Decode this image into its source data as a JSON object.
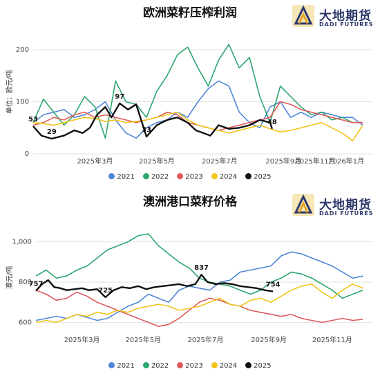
{
  "logo": {
    "cn": "大地期货",
    "en": "DADI FUTURES"
  },
  "legend": [
    {
      "name": "2021",
      "color": "#4f86d8"
    },
    {
      "name": "2022",
      "color": "#2ca66e"
    },
    {
      "name": "2023",
      "color": "#e05a5a"
    },
    {
      "name": "2024",
      "color": "#f0c419"
    },
    {
      "name": "2025",
      "color": "#111111"
    }
  ],
  "chart_data": [
    {
      "type": "line",
      "title": "欧洲菜籽压榨利润",
      "ylabel": "单位：欧元/吨",
      "xlabel": "",
      "ylim": [
        0,
        200
      ],
      "yticks": [
        "0",
        "100",
        "200"
      ],
      "xlim": [
        0,
        330
      ],
      "xticks": [
        {
          "x": 60,
          "label": "2025年3月"
        },
        {
          "x": 120,
          "label": "2025年5月"
        },
        {
          "x": 181,
          "label": "2025年7月"
        },
        {
          "x": 243,
          "label": "2025年9月"
        },
        {
          "x": 304,
          "label": "2026年1月"
        }
      ],
      "xtick_extra": [
        {
          "x": 274,
          "label": "2025年11月"
        }
      ],
      "series": [
        {
          "name": "2021",
          "x": [
            0,
            10,
            20,
            30,
            40,
            50,
            60,
            70,
            80,
            90,
            100,
            110,
            120,
            130,
            140,
            150,
            160,
            170,
            180,
            190,
            200,
            210,
            220,
            230,
            240,
            250,
            260,
            270,
            280,
            290,
            300,
            310,
            320
          ],
          "values": [
            60,
            75,
            80,
            85,
            70,
            75,
            85,
            100,
            65,
            40,
            30,
            50,
            60,
            65,
            80,
            70,
            100,
            125,
            140,
            130,
            80,
            60,
            50,
            90,
            100,
            70,
            80,
            70,
            80,
            75,
            70,
            70,
            55
          ]
        },
        {
          "name": "2022",
          "x": [
            0,
            10,
            20,
            30,
            40,
            50,
            60,
            70,
            80,
            90,
            100,
            110,
            120,
            130,
            140,
            150,
            160,
            170,
            180,
            190,
            200,
            210,
            220,
            230,
            240,
            250,
            260,
            270,
            280,
            290,
            300,
            310,
            320
          ],
          "values": [
            60,
            105,
            80,
            55,
            75,
            110,
            90,
            30,
            140,
            100,
            95,
            70,
            120,
            150,
            190,
            205,
            165,
            130,
            180,
            210,
            165,
            185,
            110,
            60,
            130,
            110,
            90,
            75,
            80,
            65,
            70,
            60,
            60
          ]
        },
        {
          "name": "2023",
          "x": [
            0,
            10,
            20,
            30,
            40,
            50,
            60,
            70,
            80,
            90,
            100,
            110,
            120,
            130,
            140,
            150,
            160,
            170,
            180,
            190,
            200,
            210,
            220,
            230,
            240,
            250,
            260,
            270,
            280,
            290,
            300,
            310,
            320
          ],
          "values": [
            55,
            60,
            70,
            65,
            75,
            80,
            70,
            75,
            70,
            65,
            60,
            65,
            70,
            80,
            75,
            60,
            55,
            50,
            45,
            50,
            55,
            60,
            65,
            70,
            100,
            95,
            85,
            80,
            75,
            70,
            65,
            60,
            60
          ]
        },
        {
          "name": "2024",
          "x": [
            0,
            10,
            20,
            30,
            40,
            50,
            60,
            70,
            80,
            90,
            100,
            110,
            120,
            130,
            140,
            150,
            160,
            170,
            180,
            190,
            200,
            210,
            220,
            230,
            240,
            250,
            260,
            270,
            280,
            290,
            300,
            310,
            320
          ],
          "values": [
            60,
            58,
            55,
            60,
            65,
            70,
            68,
            62,
            65,
            60,
            62,
            65,
            70,
            75,
            80,
            65,
            55,
            50,
            45,
            40,
            45,
            50,
            55,
            48,
            42,
            45,
            50,
            55,
            60,
            50,
            40,
            25,
            55
          ]
        },
        {
          "name": "2025",
          "x": [
            0,
            8,
            18,
            30,
            40,
            48,
            55,
            62,
            70,
            76,
            84,
            92,
            100,
            110,
            120,
            130,
            140,
            150,
            158,
            165,
            172,
            180,
            190,
            200,
            210,
            220,
            230,
            232
          ],
          "values": [
            53,
            35,
            29,
            35,
            45,
            40,
            50,
            75,
            90,
            70,
            97,
            85,
            95,
            33,
            55,
            65,
            70,
            60,
            45,
            40,
            35,
            55,
            48,
            50,
            55,
            65,
            60,
            48
          ]
        }
      ],
      "annotations": [
        {
          "series": "2025",
          "x": 0,
          "y": 53,
          "label": "53"
        },
        {
          "series": "2025",
          "x": 18,
          "y": 29,
          "label": "29"
        },
        {
          "series": "2025",
          "x": 84,
          "y": 97,
          "label": "97"
        },
        {
          "series": "2025",
          "x": 110,
          "y": 33,
          "label": "33"
        },
        {
          "series": "2025",
          "x": 232,
          "y": 48,
          "label": "48"
        }
      ]
    },
    {
      "type": "line",
      "title": "澳洲港口菜籽价格",
      "ylabel": "澳元/吨",
      "xlabel": "",
      "ylim": [
        550,
        1050
      ],
      "yticks": [
        "600",
        "800",
        "1,000"
      ],
      "xlim": [
        0,
        330
      ],
      "xticks": [
        {
          "x": 45,
          "label": "2025年3月"
        },
        {
          "x": 105,
          "label": "2025年5月"
        },
        {
          "x": 166,
          "label": "2025年7月"
        },
        {
          "x": 228,
          "label": "2025年9月"
        },
        {
          "x": 290,
          "label": "2025年11月"
        }
      ],
      "series": [
        {
          "name": "2021",
          "x": [
            0,
            10,
            20,
            30,
            40,
            50,
            60,
            70,
            80,
            90,
            100,
            110,
            120,
            130,
            140,
            150,
            160,
            170,
            180,
            190,
            200,
            210,
            220,
            230,
            240,
            250,
            260,
            270,
            280,
            290,
            300,
            310,
            320
          ],
          "values": [
            610,
            620,
            630,
            620,
            640,
            625,
            610,
            620,
            650,
            680,
            700,
            740,
            720,
            700,
            760,
            780,
            770,
            760,
            800,
            810,
            850,
            860,
            870,
            880,
            930,
            950,
            940,
            920,
            900,
            880,
            850,
            820,
            830
          ]
        },
        {
          "name": "2022",
          "x": [
            0,
            10,
            20,
            30,
            40,
            50,
            60,
            70,
            80,
            90,
            100,
            110,
            120,
            130,
            140,
            150,
            160,
            170,
            180,
            190,
            200,
            210,
            220,
            230,
            240,
            250,
            260,
            270,
            280,
            290,
            300,
            310,
            320
          ],
          "values": [
            830,
            860,
            820,
            830,
            860,
            880,
            920,
            960,
            980,
            1000,
            1030,
            1040,
            980,
            940,
            900,
            870,
            820,
            800,
            790,
            780,
            760,
            740,
            760,
            800,
            820,
            850,
            840,
            820,
            790,
            760,
            720,
            740,
            760
          ]
        },
        {
          "name": "2023",
          "x": [
            0,
            10,
            20,
            30,
            40,
            50,
            60,
            70,
            80,
            90,
            100,
            110,
            120,
            130,
            140,
            150,
            160,
            170,
            180,
            190,
            200,
            210,
            220,
            230,
            240,
            250,
            260,
            270,
            280,
            290,
            300,
            310,
            320
          ],
          "values": [
            760,
            740,
            710,
            720,
            750,
            730,
            700,
            680,
            660,
            640,
            620,
            600,
            580,
            590,
            620,
            660,
            700,
            720,
            710,
            690,
            680,
            660,
            650,
            640,
            630,
            640,
            620,
            610,
            600,
            610,
            620,
            610,
            615
          ]
        },
        {
          "name": "2024",
          "x": [
            0,
            10,
            20,
            30,
            40,
            50,
            60,
            70,
            80,
            90,
            100,
            110,
            120,
            130,
            140,
            150,
            160,
            170,
            180,
            190,
            200,
            210,
            220,
            230,
            240,
            250,
            260,
            270,
            280,
            290,
            300,
            310,
            320
          ],
          "values": [
            600,
            610,
            600,
            620,
            640,
            630,
            650,
            640,
            660,
            650,
            670,
            680,
            690,
            680,
            660,
            670,
            680,
            700,
            720,
            690,
            680,
            710,
            720,
            700,
            730,
            760,
            780,
            790,
            750,
            720,
            760,
            790,
            770
          ]
        },
        {
          "name": "2025",
          "x": [
            0,
            6,
            12,
            18,
            24,
            30,
            38,
            45,
            52,
            60,
            68,
            76,
            84,
            92,
            100,
            108,
            116,
            124,
            132,
            140,
            148,
            156,
            162,
            168,
            176,
            184,
            192,
            200,
            208,
            216,
            224,
            232
          ],
          "values": [
            757,
            790,
            810,
            775,
            770,
            760,
            765,
            770,
            760,
            765,
            725,
            760,
            775,
            770,
            780,
            765,
            775,
            780,
            785,
            790,
            780,
            790,
            837,
            800,
            790,
            795,
            790,
            780,
            775,
            770,
            760,
            754
          ]
        }
      ],
      "annotations": [
        {
          "series": "2025",
          "x": 0,
          "y": 757,
          "label": "757"
        },
        {
          "series": "2025",
          "x": 68,
          "y": 725,
          "label": "725"
        },
        {
          "series": "2025",
          "x": 162,
          "y": 837,
          "label": "837"
        },
        {
          "series": "2025",
          "x": 232,
          "y": 754,
          "label": "754"
        }
      ]
    }
  ]
}
